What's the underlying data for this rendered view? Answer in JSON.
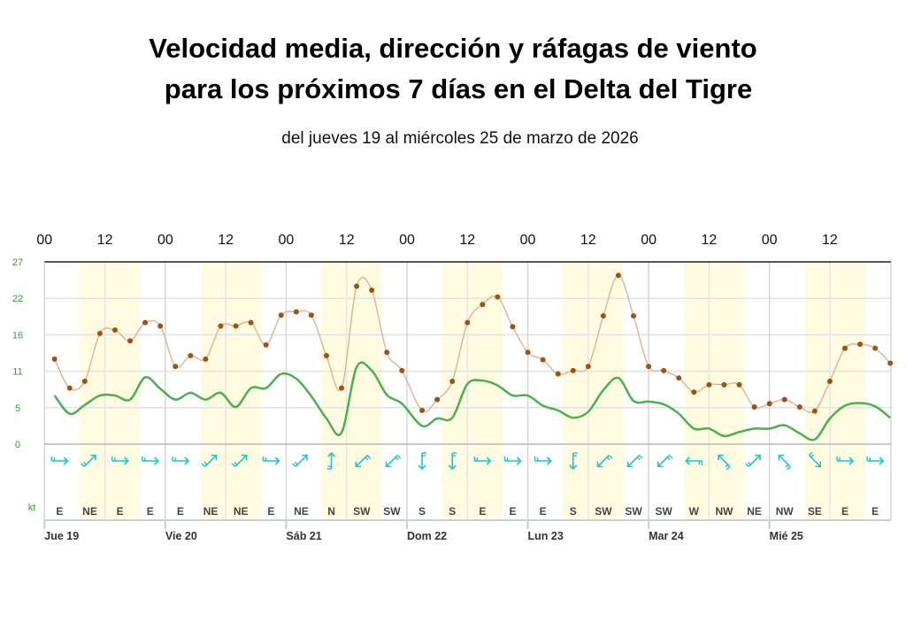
{
  "title_line1": "Velocidad media, dirección y ráfagas de viento",
  "title_line2": "para los próximos 7 días en el Delta del Tigre",
  "subtitle": "del jueves 19 al miércoles 25 de marzo de 2026",
  "colors": {
    "gust_line": "#d9b8a0",
    "gust_point": "#a0500f",
    "mean_line": "#4caf50",
    "arrow": "#1cc4cc",
    "y_label": "#2e9e2e",
    "daylight_band": "#fffbe0",
    "grid": "#e2e2e2"
  },
  "chart_data": {
    "type": "line",
    "title": "",
    "ylabel": "kt",
    "ylim": [
      0,
      27
    ],
    "y_ticks": [
      0,
      5.4,
      10.8,
      16.2,
      21.6,
      27
    ],
    "y_tick_labels": [
      "0",
      "5",
      "11",
      "16",
      "22",
      "27"
    ],
    "x_hour_labels": [
      "00",
      "12",
      "00",
      "12",
      "00",
      "12",
      "00",
      "12",
      "00",
      "12",
      "00",
      "12",
      "00",
      "12"
    ],
    "day_labels": [
      "Jue 19",
      "Vie 20",
      "Sáb 21",
      "Dom 22",
      "Lun 23",
      "Mar 24",
      "Mié 25"
    ],
    "grid": true,
    "daylight_hours": [
      7,
      19
    ],
    "times": [
      "2026-03-19T02:00",
      "2026-03-19T05:00",
      "2026-03-19T08:00",
      "2026-03-19T11:00",
      "2026-03-19T14:00",
      "2026-03-19T17:00",
      "2026-03-19T20:00",
      "2026-03-19T23:00",
      "2026-03-20T02:00",
      "2026-03-20T05:00",
      "2026-03-20T08:00",
      "2026-03-20T11:00",
      "2026-03-20T14:00",
      "2026-03-20T17:00",
      "2026-03-20T20:00",
      "2026-03-20T23:00",
      "2026-03-21T02:00",
      "2026-03-21T05:00",
      "2026-03-21T08:00",
      "2026-03-21T11:00",
      "2026-03-21T14:00",
      "2026-03-21T17:00",
      "2026-03-21T20:00",
      "2026-03-21T23:00",
      "2026-03-22T03:00",
      "2026-03-22T06:00",
      "2026-03-22T09:00",
      "2026-03-22T12:00",
      "2026-03-22T15:00",
      "2026-03-22T18:00",
      "2026-03-22T21:00",
      "2026-03-23T00:00",
      "2026-03-23T03:00",
      "2026-03-23T06:00",
      "2026-03-23T09:00",
      "2026-03-23T12:00",
      "2026-03-23T15:00",
      "2026-03-23T18:00",
      "2026-03-23T21:00",
      "2026-03-24T00:00",
      "2026-03-24T03:00",
      "2026-03-24T06:00",
      "2026-03-24T09:00",
      "2026-03-24T12:00",
      "2026-03-24T15:00",
      "2026-03-24T18:00",
      "2026-03-24T21:00",
      "2026-03-25T00:00",
      "2026-03-25T03:00",
      "2026-03-25T06:00",
      "2026-03-25T09:00",
      "2026-03-25T12:00",
      "2026-03-25T15:00",
      "2026-03-25T18:00",
      "2026-03-25T21:00",
      "2026-03-26T00:00"
    ],
    "series": [
      {
        "key": "gust",
        "values": [
          12.6,
          8.3,
          9.3,
          16.4,
          16.9,
          15.3,
          18.0,
          17.5,
          11.5,
          13.1,
          12.6,
          17.5,
          17.5,
          18.0,
          14.7,
          19.1,
          19.6,
          19.1,
          13.1,
          8.3,
          23.4,
          22.8,
          13.6,
          10.9,
          5.0,
          6.6,
          9.3,
          18.0,
          20.7,
          21.8,
          17.4,
          13.6,
          12.5,
          10.4,
          10.9,
          11.5,
          19.0,
          25.0,
          19.0,
          11.5,
          10.9,
          9.8,
          7.7,
          8.8,
          8.8,
          8.8,
          5.5,
          6.0,
          6.6,
          5.5,
          4.9,
          9.3,
          14.2,
          14.8,
          14.2,
          12.0
        ]
      },
      {
        "key": "mean",
        "values": [
          7.2,
          4.5,
          5.8,
          7.2,
          7.2,
          6.6,
          9.9,
          8.2,
          6.6,
          7.6,
          6.6,
          7.6,
          5.5,
          8.3,
          8.3,
          10.4,
          9.7,
          7.1,
          3.8,
          1.7,
          11.4,
          10.9,
          7.3,
          6.0,
          2.7,
          3.8,
          3.9,
          8.9,
          9.4,
          8.7,
          7.2,
          7.2,
          5.7,
          5.0,
          3.9,
          4.8,
          8.0,
          9.8,
          6.4,
          6.3,
          5.9,
          4.5,
          2.3,
          2.3,
          1.2,
          1.8,
          2.3,
          2.3,
          2.8,
          1.6,
          0.7,
          3.8,
          5.7,
          6.1,
          5.6,
          3.9
        ]
      }
    ],
    "directions": [
      "E",
      "NE",
      "E",
      "E",
      "E",
      "NE",
      "NE",
      "E",
      "NE",
      "N",
      "SW",
      "SW",
      "S",
      "S",
      "E",
      "E",
      "E",
      "S",
      "SW",
      "SW",
      "SW",
      "W",
      "NW",
      "NE",
      "NW",
      "SE",
      "E",
      "E"
    ]
  }
}
